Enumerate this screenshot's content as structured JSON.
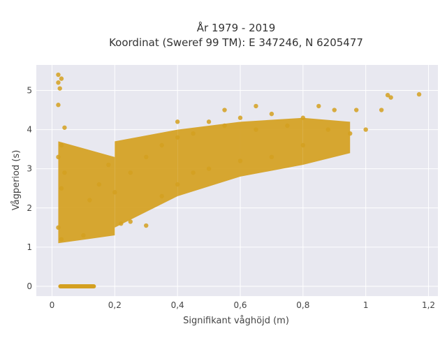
{
  "chart_data": {
    "type": "scatter",
    "title": "År 1979 - 2019",
    "subtitle": "Koordinat (Sweref 99 TM): E 347246, N 6205477",
    "xlabel": "Signifikant våghöjd (m)",
    "ylabel": "Vågperiod (s)",
    "xlim": [
      -0.05,
      1.23
    ],
    "ylim": [
      -0.25,
      5.65
    ],
    "x_ticks": [
      0,
      0.2,
      0.4,
      0.6,
      0.8,
      1.0,
      1.2
    ],
    "x_tick_labels": [
      "0",
      "0,2",
      "0,4",
      "0,6",
      "0,8",
      "1",
      "1,2"
    ],
    "y_ticks": [
      0,
      1,
      2,
      3,
      4,
      5
    ],
    "y_tick_labels": [
      "0",
      "1",
      "2",
      "3",
      "4",
      "5"
    ],
    "grid": true,
    "marker_color": "#D4A020",
    "plot_background": "#E8E8F0",
    "series": [
      {
        "values": [
          {
            "x": 0.02,
            "y": 5.4
          },
          {
            "x": 0.03,
            "y": 5.3
          },
          {
            "x": 0.02,
            "y": 5.2
          },
          {
            "x": 0.025,
            "y": 5.05
          },
          {
            "x": 0.02,
            "y": 4.63
          },
          {
            "x": 0.04,
            "y": 4.05
          },
          {
            "x": 0.03,
            "y": 3.6
          },
          {
            "x": 0.02,
            "y": 3.3
          },
          {
            "x": 0.04,
            "y": 2.9
          },
          {
            "x": 0.03,
            "y": 2.5
          },
          {
            "x": 0.02,
            "y": 1.5
          },
          {
            "x": 0.03,
            "y": 1.2
          },
          {
            "x": 0.1,
            "y": 1.3
          },
          {
            "x": 0.12,
            "y": 2.2
          },
          {
            "x": 0.15,
            "y": 2.6
          },
          {
            "x": 0.18,
            "y": 3.1
          },
          {
            "x": 0.2,
            "y": 2.4
          },
          {
            "x": 0.22,
            "y": 1.6
          },
          {
            "x": 0.25,
            "y": 2.9
          },
          {
            "x": 0.3,
            "y": 3.3
          },
          {
            "x": 0.35,
            "y": 3.6
          },
          {
            "x": 0.35,
            "y": 2.3
          },
          {
            "x": 0.4,
            "y": 3.8
          },
          {
            "x": 0.4,
            "y": 2.6
          },
          {
            "x": 0.45,
            "y": 3.9
          },
          {
            "x": 0.45,
            "y": 2.9
          },
          {
            "x": 0.5,
            "y": 4.2
          },
          {
            "x": 0.5,
            "y": 3.0
          },
          {
            "x": 0.55,
            "y": 4.1
          },
          {
            "x": 0.6,
            "y": 4.3
          },
          {
            "x": 0.6,
            "y": 3.2
          },
          {
            "x": 0.65,
            "y": 4.0
          },
          {
            "x": 0.7,
            "y": 4.4
          },
          {
            "x": 0.7,
            "y": 3.3
          },
          {
            "x": 0.75,
            "y": 4.1
          },
          {
            "x": 0.8,
            "y": 4.3
          },
          {
            "x": 0.8,
            "y": 3.6
          },
          {
            "x": 0.85,
            "y": 4.6
          },
          {
            "x": 0.88,
            "y": 4.0
          },
          {
            "x": 0.9,
            "y": 4.5
          },
          {
            "x": 0.95,
            "y": 3.9
          },
          {
            "x": 0.97,
            "y": 4.5
          },
          {
            "x": 1.0,
            "y": 4.0
          },
          {
            "x": 1.05,
            "y": 4.5
          },
          {
            "x": 1.07,
            "y": 4.88
          },
          {
            "x": 1.08,
            "y": 4.82
          },
          {
            "x": 1.17,
            "y": 4.9
          },
          {
            "x": 0.25,
            "y": 1.65
          },
          {
            "x": 0.3,
            "y": 1.55
          },
          {
            "x": 0.4,
            "y": 4.2
          },
          {
            "x": 0.55,
            "y": 4.5
          },
          {
            "x": 0.65,
            "y": 4.6
          }
        ]
      }
    ],
    "bands": [
      {
        "x": [
          0.02,
          0.2
        ],
        "y_low": [
          1.1,
          1.3
        ],
        "y_high": [
          3.7,
          3.3
        ]
      },
      {
        "x": [
          0.2,
          0.4
        ],
        "y_low": [
          1.5,
          2.3
        ],
        "y_high": [
          3.7,
          4.0
        ]
      },
      {
        "x": [
          0.4,
          0.6
        ],
        "y_low": [
          2.3,
          2.8
        ],
        "y_high": [
          4.0,
          4.2
        ]
      },
      {
        "x": [
          0.6,
          0.8
        ],
        "y_low": [
          2.8,
          3.1
        ],
        "y_high": [
          4.2,
          4.3
        ]
      },
      {
        "x": [
          0.8,
          0.95
        ],
        "y_low": [
          3.1,
          3.4
        ],
        "y_high": [
          4.3,
          4.2
        ]
      }
    ],
    "zero_row": {
      "x": [
        0.02,
        0.14
      ],
      "y": 0
    }
  }
}
